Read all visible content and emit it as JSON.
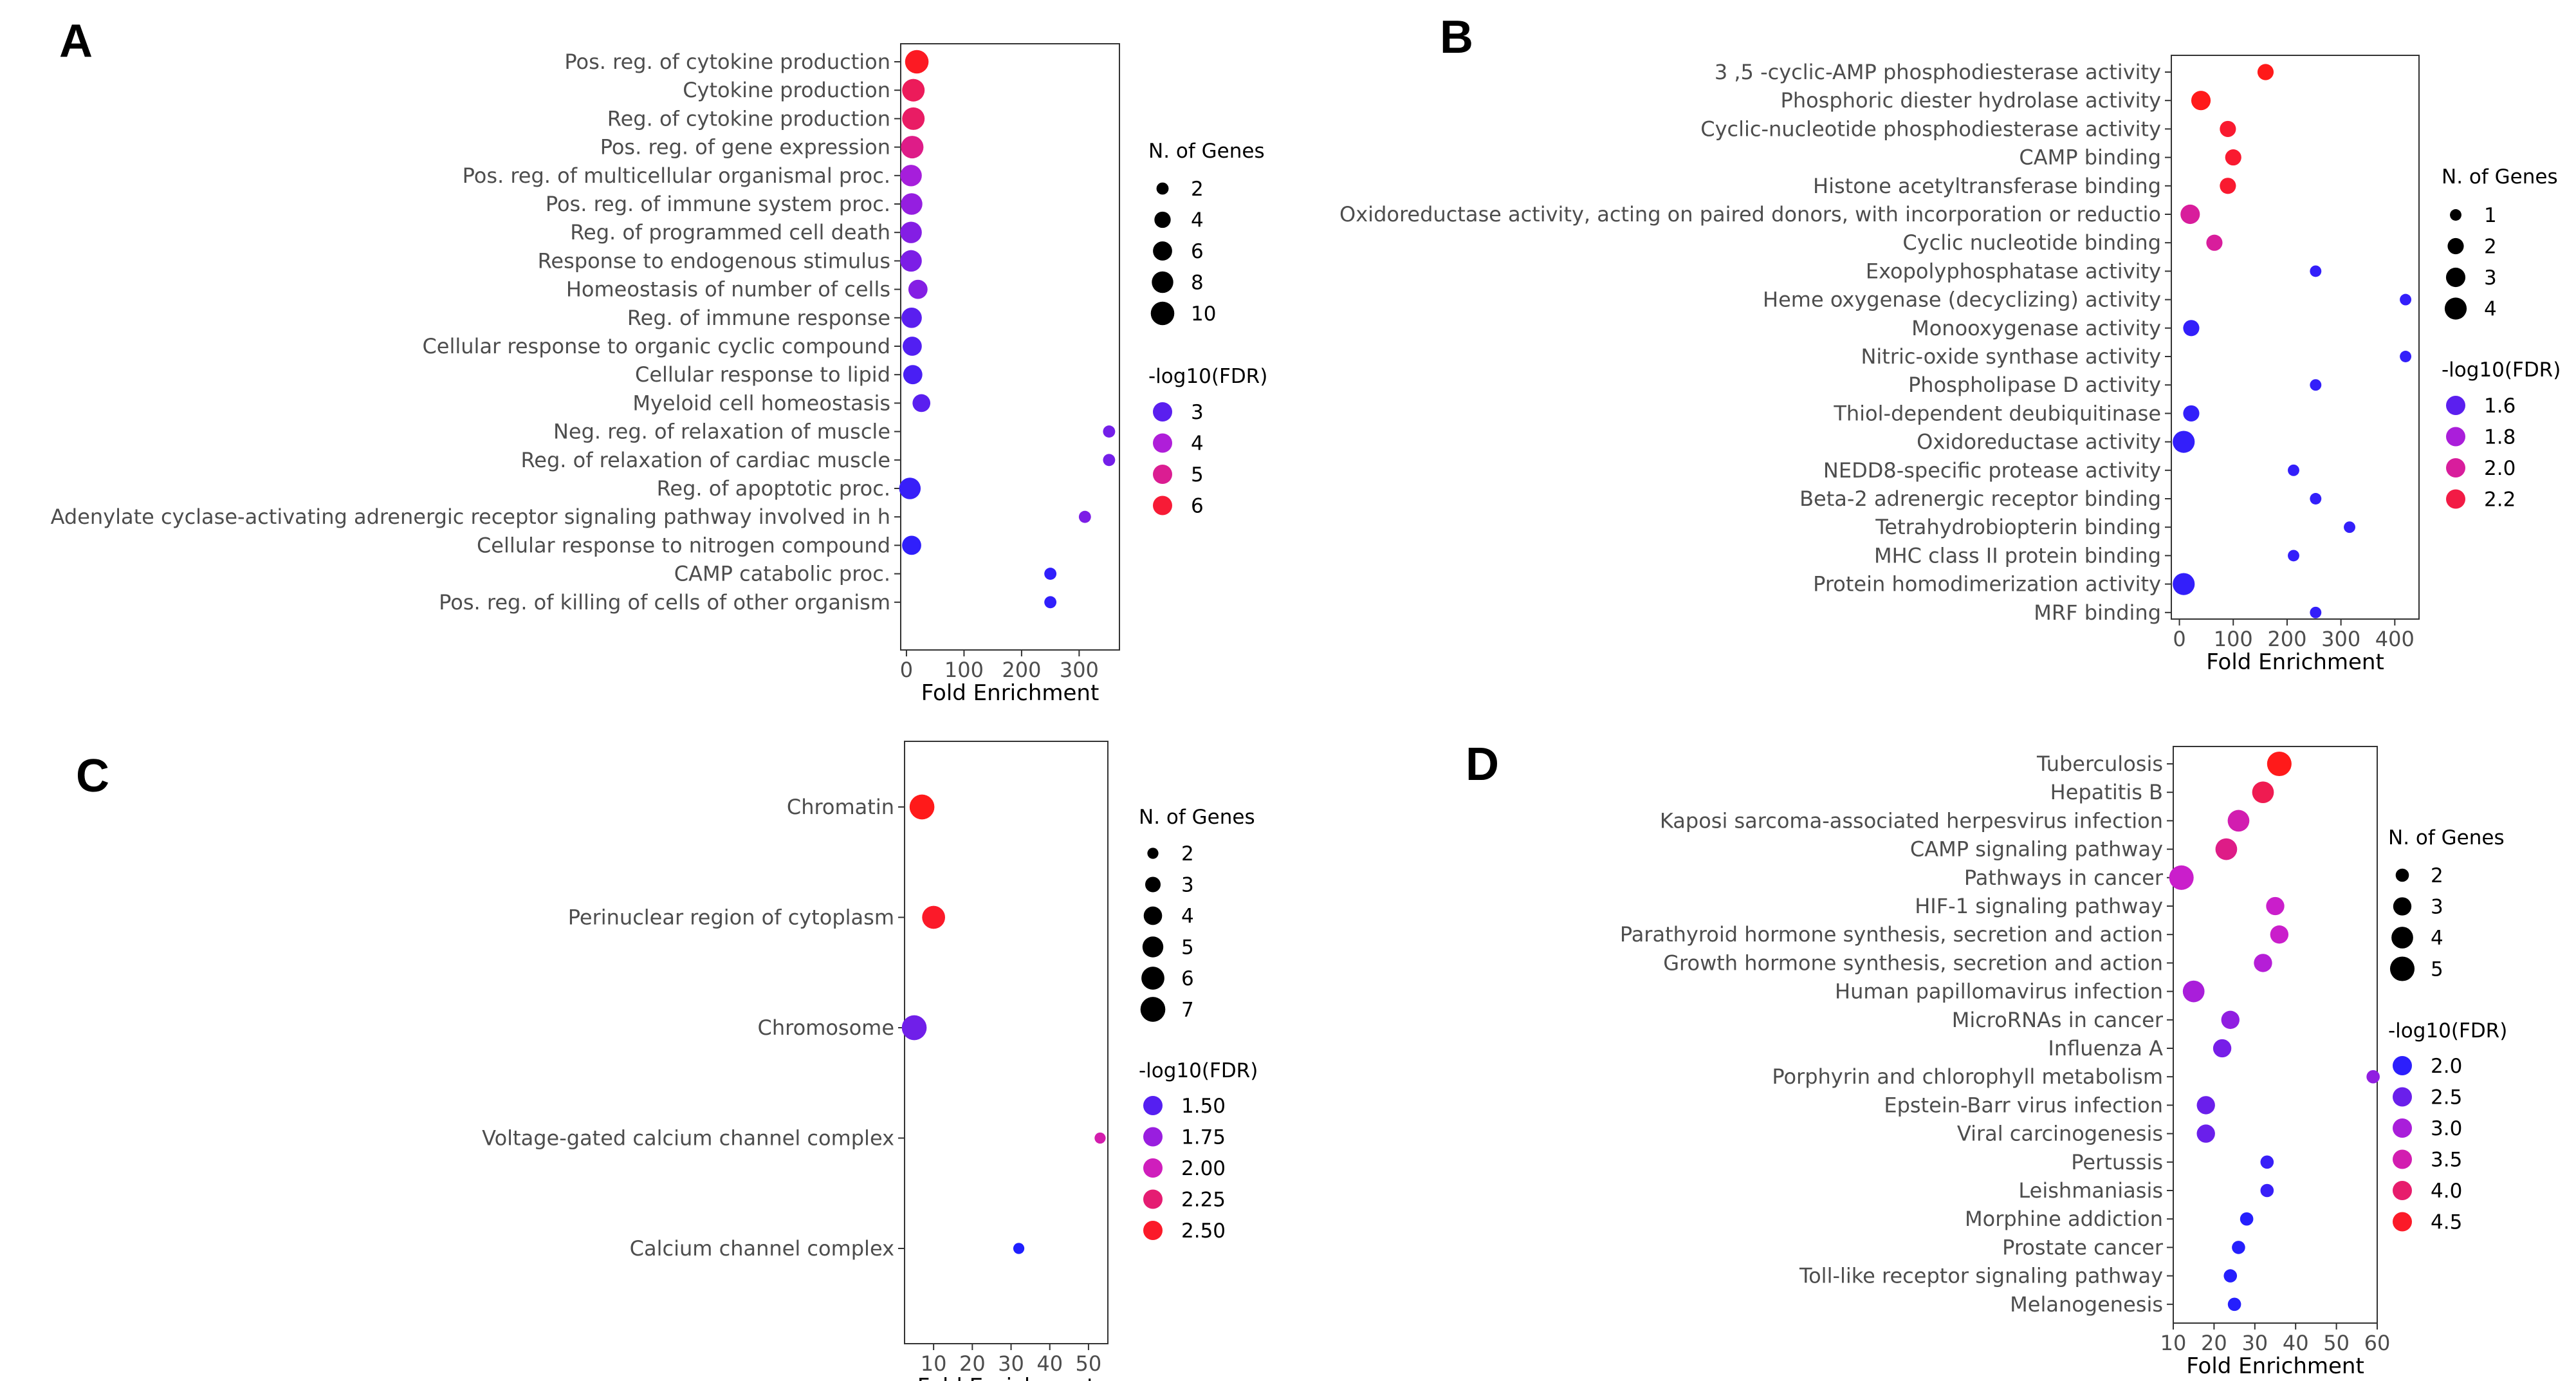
{
  "colors": {
    "low": "#1f1fff",
    "mid": "#c81ed2",
    "high": "#ff1a1a"
  },
  "chart_data": [
    {
      "panel": "A",
      "type": "scatter",
      "xlabel": "Fold Enrichment",
      "xlim": [
        -10,
        370
      ],
      "xticks": [
        0,
        100,
        200,
        300
      ],
      "size_legend": {
        "title": "N. of Genes",
        "values": [
          2,
          4,
          6,
          8,
          10
        ],
        "domain": [
          1,
          11
        ]
      },
      "color_legend": {
        "title": "-log10(FDR)",
        "values": [
          3,
          4,
          5,
          6
        ],
        "domain": [
          2.3,
          6.3
        ]
      },
      "rows": [
        {
          "label": "Pos. reg. of cytokine production",
          "x": 18,
          "genes": 10,
          "fdr": 6.2
        },
        {
          "label": "Cytokine production",
          "x": 12,
          "genes": 9,
          "fdr": 5.6
        },
        {
          "label": "Reg. of cytokine production",
          "x": 12,
          "genes": 9,
          "fdr": 5.5
        },
        {
          "label": "Pos. reg. of gene expression",
          "x": 10,
          "genes": 9,
          "fdr": 5.1
        },
        {
          "label": "Pos. reg. of multicellular organismal proc.",
          "x": 8,
          "genes": 8,
          "fdr": 3.9
        },
        {
          "label": "Pos. reg. of immune system proc.",
          "x": 9,
          "genes": 8,
          "fdr": 3.7
        },
        {
          "label": "Reg. of programmed cell death",
          "x": 8,
          "genes": 8,
          "fdr": 3.5
        },
        {
          "label": "Response to endogenous stimulus",
          "x": 8,
          "genes": 8,
          "fdr": 3.4
        },
        {
          "label": "Homeostasis of number of cells",
          "x": 20,
          "genes": 6,
          "fdr": 3.5
        },
        {
          "label": "Reg. of immune response",
          "x": 9,
          "genes": 7,
          "fdr": 3.0
        },
        {
          "label": "Cellular response to organic cyclic compound",
          "x": 10,
          "genes": 6,
          "fdr": 2.9
        },
        {
          "label": "Cellular response to lipid",
          "x": 11,
          "genes": 6,
          "fdr": 2.8
        },
        {
          "label": "Myeloid cell homeostasis",
          "x": 26,
          "genes": 5,
          "fdr": 3.0
        },
        {
          "label": "Neg. reg. of relaxation of muscle",
          "x": 352,
          "genes": 2,
          "fdr": 3.3
        },
        {
          "label": "Reg. of relaxation of cardiac muscle",
          "x": 352,
          "genes": 2,
          "fdr": 3.3
        },
        {
          "label": "Reg. of apoptotic proc.",
          "x": 6,
          "genes": 8,
          "fdr": 2.6
        },
        {
          "label": "Adenylate cyclase-activating adrenergic receptor signaling pathway involved in h",
          "x": 310,
          "genes": 2,
          "fdr": 3.4
        },
        {
          "label": "Cellular response to nitrogen compound",
          "x": 9,
          "genes": 6,
          "fdr": 2.5
        },
        {
          "label": "CAMP catabolic proc.",
          "x": 250,
          "genes": 2,
          "fdr": 2.5
        },
        {
          "label": "Pos. reg. of killing of cells of other organism",
          "x": 250,
          "genes": 2,
          "fdr": 2.5
        }
      ]
    },
    {
      "panel": "B",
      "type": "scatter",
      "xlabel": "Fold Enrichment",
      "xlim": [
        -15,
        445
      ],
      "xticks": [
        0,
        100,
        200,
        300,
        400
      ],
      "size_legend": {
        "title": "N. of Genes",
        "values": [
          1,
          2,
          3,
          4
        ],
        "domain": [
          0.5,
          4.5
        ]
      },
      "color_legend": {
        "title": "-log10(FDR)",
        "values": [
          1.6,
          1.8,
          2.0,
          2.2
        ],
        "domain": [
          1.45,
          2.3
        ]
      },
      "rows": [
        {
          "label": "3 ,5 -cyclic-AMP phosphodiesterase activity",
          "x": 160,
          "genes": 2,
          "fdr": 2.3
        },
        {
          "label": "Phosphoric diester hydrolase activity",
          "x": 40,
          "genes": 3,
          "fdr": 2.3
        },
        {
          "label": "Cyclic-nucleotide phosphodiesterase activity",
          "x": 90,
          "genes": 2,
          "fdr": 2.25
        },
        {
          "label": "CAMP binding",
          "x": 100,
          "genes": 2,
          "fdr": 2.25
        },
        {
          "label": "Histone acetyltransferase binding",
          "x": 90,
          "genes": 2,
          "fdr": 2.25
        },
        {
          "label": "Oxidoreductase activity, acting on paired donors, with incorporation or reductio",
          "x": 20,
          "genes": 3,
          "fdr": 2.0
        },
        {
          "label": "Cyclic nucleotide binding",
          "x": 65,
          "genes": 2,
          "fdr": 2.0
        },
        {
          "label": "Exopolyphosphatase activity",
          "x": 253,
          "genes": 1,
          "fdr": 1.5
        },
        {
          "label": "Heme oxygenase (decyclizing) activity",
          "x": 420,
          "genes": 1,
          "fdr": 1.5
        },
        {
          "label": "Monooxygenase activity",
          "x": 22,
          "genes": 2,
          "fdr": 1.5
        },
        {
          "label": "Nitric-oxide synthase activity",
          "x": 420,
          "genes": 1,
          "fdr": 1.5
        },
        {
          "label": "Phospholipase D activity",
          "x": 253,
          "genes": 1,
          "fdr": 1.5
        },
        {
          "label": "Thiol-dependent deubiquitinase",
          "x": 22,
          "genes": 2,
          "fdr": 1.5
        },
        {
          "label": "Oxidoreductase activity",
          "x": 8,
          "genes": 4,
          "fdr": 1.5
        },
        {
          "label": "NEDD8-specific protease activity",
          "x": 212,
          "genes": 1,
          "fdr": 1.5
        },
        {
          "label": "Beta-2 adrenergic receptor binding",
          "x": 253,
          "genes": 1,
          "fdr": 1.5
        },
        {
          "label": "Tetrahydrobiopterin binding",
          "x": 316,
          "genes": 1,
          "fdr": 1.5
        },
        {
          "label": "MHC class II protein binding",
          "x": 212,
          "genes": 1,
          "fdr": 1.5
        },
        {
          "label": "Protein homodimerization activity",
          "x": 8,
          "genes": 4,
          "fdr": 1.5
        },
        {
          "label": "MRF binding",
          "x": 253,
          "genes": 1,
          "fdr": 1.5
        }
      ]
    },
    {
      "panel": "C",
      "type": "scatter",
      "xlabel": "Fold Enrichment",
      "xlim": [
        2.5,
        55
      ],
      "xticks": [
        10,
        20,
        30,
        40,
        50
      ],
      "size_legend": {
        "title": "N. of Genes",
        "values": [
          2,
          3,
          4,
          5,
          6,
          7
        ],
        "domain": [
          1.5,
          7.5
        ]
      },
      "color_legend": {
        "title": "-log10(FDR)",
        "values": [
          1.5,
          1.75,
          2.0,
          2.25,
          2.5
        ],
        "domain": [
          1.3,
          2.55
        ]
      },
      "rows": [
        {
          "label": "Chromatin",
          "x": 7,
          "genes": 7,
          "fdr": 2.55
        },
        {
          "label": "Perinuclear region of cytoplasm",
          "x": 10,
          "genes": 6,
          "fdr": 2.5
        },
        {
          "label": "Chromosome",
          "x": 5,
          "genes": 7,
          "fdr": 1.6
        },
        {
          "label": "Voltage-gated calcium channel complex",
          "x": 53,
          "genes": 2,
          "fdr": 2.05
        },
        {
          "label": "Calcium channel complex",
          "x": 32,
          "genes": 2,
          "fdr": 1.3
        }
      ]
    },
    {
      "panel": "D",
      "type": "scatter",
      "xlabel": "Fold Enrichment",
      "xlim": [
        10,
        60
      ],
      "xticks": [
        10,
        20,
        30,
        40,
        50,
        60
      ],
      "size_legend": {
        "title": "N. of Genes",
        "values": [
          2,
          3,
          4,
          5
        ],
        "domain": [
          1.5,
          5.5
        ]
      },
      "color_legend": {
        "title": "-log10(FDR)",
        "values": [
          2.0,
          2.5,
          3.0,
          3.5,
          4.0,
          4.5
        ],
        "domain": [
          1.9,
          4.6
        ]
      },
      "rows": [
        {
          "label": "Tuberculosis",
          "x": 36,
          "genes": 5,
          "fdr": 4.6
        },
        {
          "label": "Hepatitis B",
          "x": 32,
          "genes": 4,
          "fdr": 4.2
        },
        {
          "label": "Kaposi sarcoma-associated herpesvirus infection",
          "x": 26,
          "genes": 4,
          "fdr": 3.5
        },
        {
          "label": "CAMP signaling pathway",
          "x": 23,
          "genes": 4,
          "fdr": 3.8
        },
        {
          "label": "Pathways in cancer",
          "x": 12,
          "genes": 5,
          "fdr": 3.3
        },
        {
          "label": "HIF-1 signaling pathway",
          "x": 35,
          "genes": 3,
          "fdr": 3.3
        },
        {
          "label": "Parathyroid hormone synthesis, secretion and action",
          "x": 36,
          "genes": 3,
          "fdr": 3.3
        },
        {
          "label": "Growth hormone synthesis, secretion and action",
          "x": 32,
          "genes": 3,
          "fdr": 3.1
        },
        {
          "label": "Human papillomavirus infection",
          "x": 15,
          "genes": 4,
          "fdr": 3.0
        },
        {
          "label": "MicroRNAs in cancer",
          "x": 24,
          "genes": 3,
          "fdr": 2.8
        },
        {
          "label": "Influenza A",
          "x": 22,
          "genes": 3,
          "fdr": 2.6
        },
        {
          "label": "Porphyrin and chlorophyll metabolism",
          "x": 59,
          "genes": 2,
          "fdr": 2.8
        },
        {
          "label": "Epstein-Barr virus infection",
          "x": 18,
          "genes": 3,
          "fdr": 2.5
        },
        {
          "label": "Viral carcinogenesis",
          "x": 18,
          "genes": 3,
          "fdr": 2.5
        },
        {
          "label": "Pertussis",
          "x": 33,
          "genes": 2,
          "fdr": 2.1
        },
        {
          "label": "Leishmaniasis",
          "x": 33,
          "genes": 2,
          "fdr": 2.1
        },
        {
          "label": "Morphine addiction",
          "x": 28,
          "genes": 2,
          "fdr": 1.95
        },
        {
          "label": "Prostate cancer",
          "x": 26,
          "genes": 2,
          "fdr": 1.95
        },
        {
          "label": "Toll-like receptor signaling pathway",
          "x": 24,
          "genes": 2,
          "fdr": 1.95
        },
        {
          "label": "Melanogenesis",
          "x": 25,
          "genes": 2,
          "fdr": 1.95
        }
      ]
    }
  ]
}
